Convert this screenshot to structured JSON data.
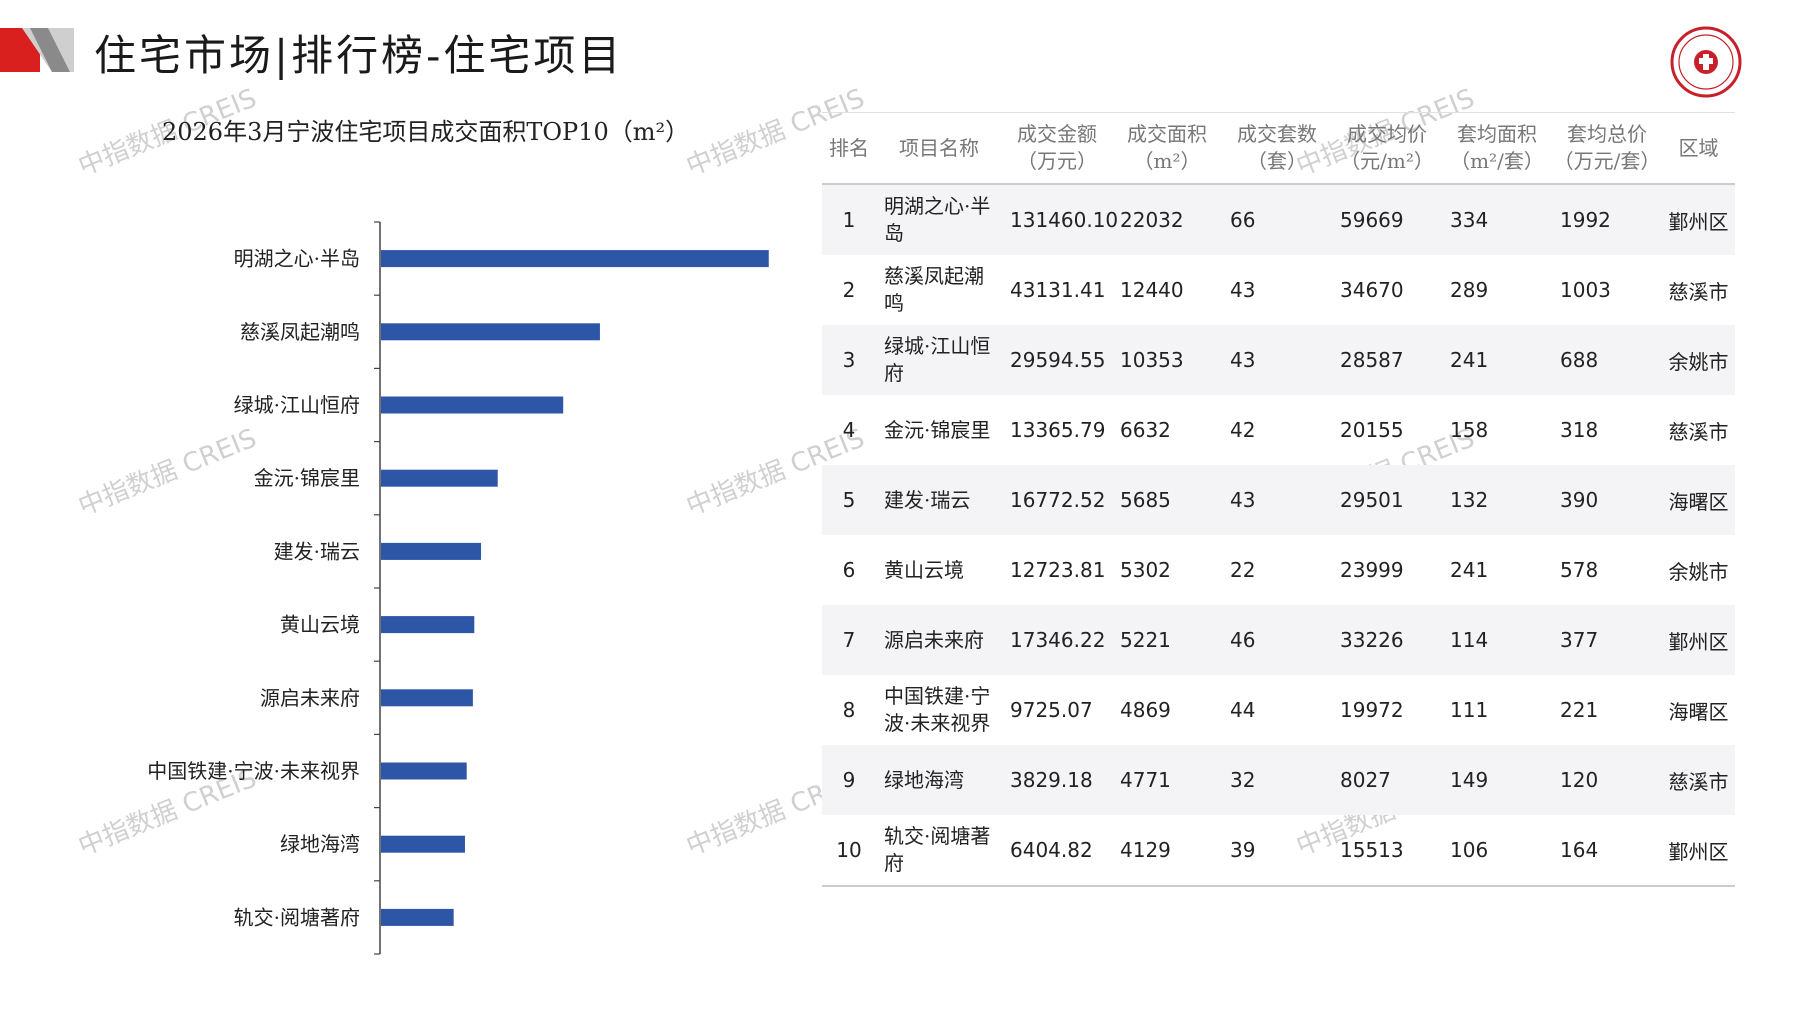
{
  "header": {
    "title": "住宅市场|排行榜-住宅项目",
    "logo_icon": "china-index-academy-seal"
  },
  "watermark": "中指数据 CREIS",
  "colors": {
    "bar": "#2e56a6",
    "accent_red": "#d9201f",
    "deco_gray": "#c8c8c8"
  },
  "chart_data": {
    "type": "bar",
    "orientation": "horizontal",
    "title": "2026年3月宁波住宅项目成交面积TOP10（m²）",
    "categories": [
      "明湖之心·半岛",
      "慈溪凤起潮鸣",
      "绿城·江山恒府",
      "金沅·锦宸里",
      "建发·瑞云",
      "黄山云境",
      "源启未来府",
      "中国铁建·宁波·未来视界",
      "绿地海湾",
      "轨交·阅塘著府"
    ],
    "values": [
      22032,
      12440,
      10353,
      6632,
      5685,
      5302,
      5221,
      4869,
      4771,
      4129
    ],
    "xlim": [
      0,
      25000
    ],
    "grid": false,
    "legend": "none"
  },
  "table": {
    "headers": [
      "排名",
      "项目名称",
      "成交金额\n（万元）",
      "成交面积\n（m²）",
      "成交套数\n（套）",
      "成交均价\n（元/m²）",
      "套均面积\n（m²/套）",
      "套均总价\n（万元/套）",
      "区域"
    ],
    "rows": [
      [
        "1",
        "明湖之心·半岛",
        "131460.10",
        "22032",
        "66",
        "59669",
        "334",
        "1992",
        "鄞州区"
      ],
      [
        "2",
        "慈溪凤起潮鸣",
        "43131.41",
        "12440",
        "43",
        "34670",
        "289",
        "1003",
        "慈溪市"
      ],
      [
        "3",
        "绿城·江山恒府",
        "29594.55",
        "10353",
        "43",
        "28587",
        "241",
        "688",
        "余姚市"
      ],
      [
        "4",
        "金沅·锦宸里",
        "13365.79",
        "6632",
        "42",
        "20155",
        "158",
        "318",
        "慈溪市"
      ],
      [
        "5",
        "建发·瑞云",
        "16772.52",
        "5685",
        "43",
        "29501",
        "132",
        "390",
        "海曙区"
      ],
      [
        "6",
        "黄山云境",
        "12723.81",
        "5302",
        "22",
        "23999",
        "241",
        "578",
        "余姚市"
      ],
      [
        "7",
        "源启未来府",
        "17346.22",
        "5221",
        "46",
        "33226",
        "114",
        "377",
        "鄞州区"
      ],
      [
        "8",
        "中国铁建·宁波·未来视界",
        "9725.07",
        "4869",
        "44",
        "19972",
        "111",
        "221",
        "海曙区"
      ],
      [
        "9",
        "绿地海湾",
        "3829.18",
        "4771",
        "32",
        "8027",
        "149",
        "120",
        "慈溪市"
      ],
      [
        "10",
        "轨交·阅塘著府",
        "6404.82",
        "4129",
        "39",
        "15513",
        "106",
        "164",
        "鄞州区"
      ]
    ]
  }
}
